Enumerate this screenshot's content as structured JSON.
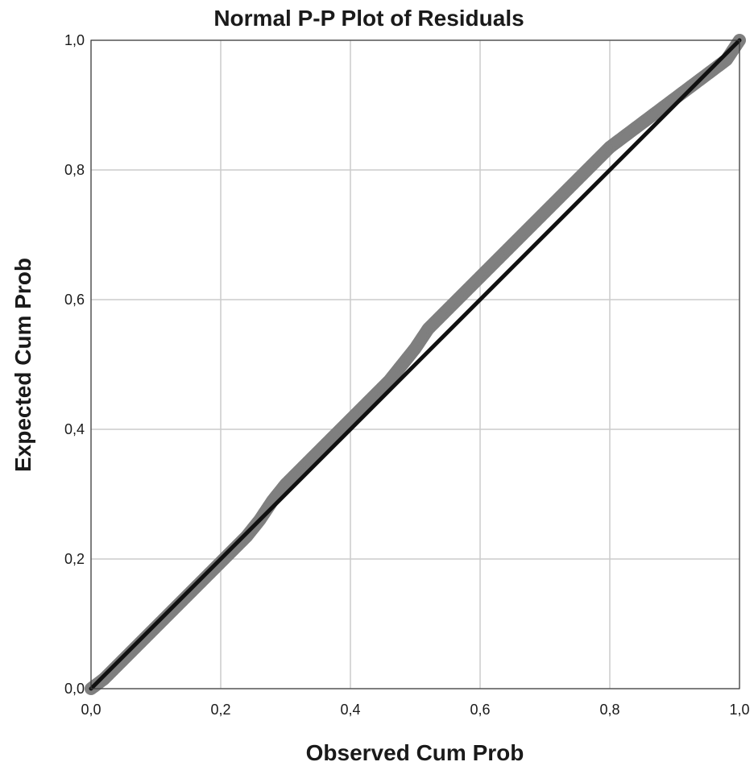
{
  "chart_data": {
    "type": "scatter",
    "title": "Normal P-P Plot of Residuals",
    "xlabel": "Observed Cum Prob",
    "ylabel": "Expected Cum Prob",
    "xlim": [
      0,
      1
    ],
    "ylim": [
      0,
      1
    ],
    "xticks": [
      "0,0",
      "0,2",
      "0,4",
      "0,6",
      "0,8",
      "1,0"
    ],
    "yticks": [
      "0,0",
      "0,2",
      "0,4",
      "0,6",
      "0,8",
      "1,0"
    ],
    "grid": true,
    "reference_line": {
      "x": [
        0,
        1
      ],
      "y": [
        0,
        1
      ],
      "color": "#111111"
    },
    "series": [
      {
        "color": "#7f7f7f",
        "x": [
          0.0,
          0.02,
          0.04,
          0.06,
          0.08,
          0.1,
          0.12,
          0.14,
          0.16,
          0.18,
          0.2,
          0.22,
          0.24,
          0.26,
          0.28,
          0.3,
          0.32,
          0.34,
          0.36,
          0.38,
          0.4,
          0.42,
          0.44,
          0.46,
          0.48,
          0.5,
          0.52,
          0.54,
          0.56,
          0.58,
          0.6,
          0.62,
          0.64,
          0.66,
          0.68,
          0.7,
          0.72,
          0.74,
          0.76,
          0.78,
          0.8,
          0.82,
          0.84,
          0.86,
          0.88,
          0.9,
          0.92,
          0.94,
          0.96,
          0.98,
          1.0
        ],
        "y": [
          0.0,
          0.015,
          0.035,
          0.055,
          0.075,
          0.095,
          0.115,
          0.135,
          0.155,
          0.175,
          0.195,
          0.215,
          0.235,
          0.26,
          0.29,
          0.315,
          0.335,
          0.355,
          0.375,
          0.395,
          0.415,
          0.435,
          0.455,
          0.475,
          0.5,
          0.525,
          0.555,
          0.575,
          0.595,
          0.615,
          0.635,
          0.655,
          0.675,
          0.695,
          0.715,
          0.735,
          0.755,
          0.775,
          0.795,
          0.815,
          0.835,
          0.85,
          0.865,
          0.88,
          0.895,
          0.91,
          0.925,
          0.94,
          0.955,
          0.97,
          1.0
        ]
      }
    ]
  }
}
